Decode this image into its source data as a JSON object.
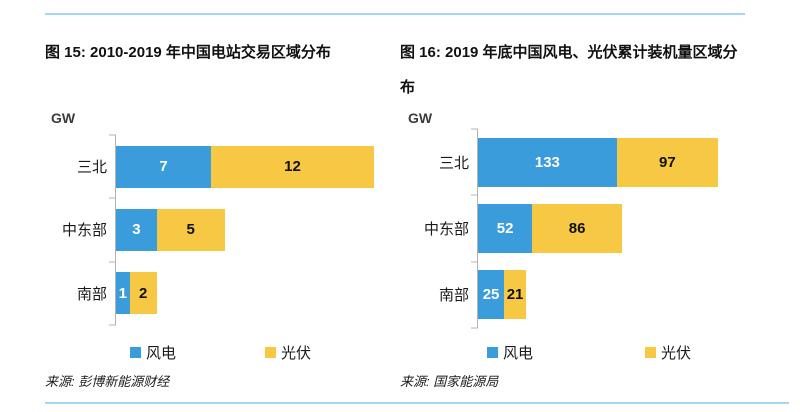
{
  "page": {
    "background": "#ffffff",
    "top_rule_color": "#a6d7f0",
    "bottom_rule_color": "#a6d7f0"
  },
  "chart_data": [
    {
      "type": "bar",
      "orientation": "horizontal",
      "stacked": true,
      "title": "图 15: 2010-2019 年中国电站交易区域分布",
      "unit_label": "GW",
      "categories": [
        "三北",
        "中东部",
        "南部"
      ],
      "series": [
        {
          "name": "风电",
          "color": "#3b9cdb",
          "values": [
            7,
            3,
            1
          ]
        },
        {
          "name": "光伏",
          "color": "#f6c844",
          "values": [
            12,
            5,
            2
          ]
        }
      ],
      "value_labels_shown": true,
      "legend_position": "bottom",
      "xlim": [
        0,
        19
      ],
      "grid": false,
      "source": "来源: 彭博新能源财经"
    },
    {
      "type": "bar",
      "orientation": "horizontal",
      "stacked": true,
      "title": "图 16: 2019 年底中国风电、光伏累计装机量区域分布",
      "unit_label": "GW",
      "categories": [
        "三北",
        "中东部",
        "南部"
      ],
      "series": [
        {
          "name": "风电",
          "color": "#3b9cdb",
          "values": [
            133,
            52,
            25
          ]
        },
        {
          "name": "光伏",
          "color": "#f6c844",
          "values": [
            97,
            86,
            21
          ]
        }
      ],
      "value_labels_shown": true,
      "legend_position": "bottom",
      "xlim": [
        0,
        230
      ],
      "grid": false,
      "source": "来源: 国家能源局"
    }
  ]
}
